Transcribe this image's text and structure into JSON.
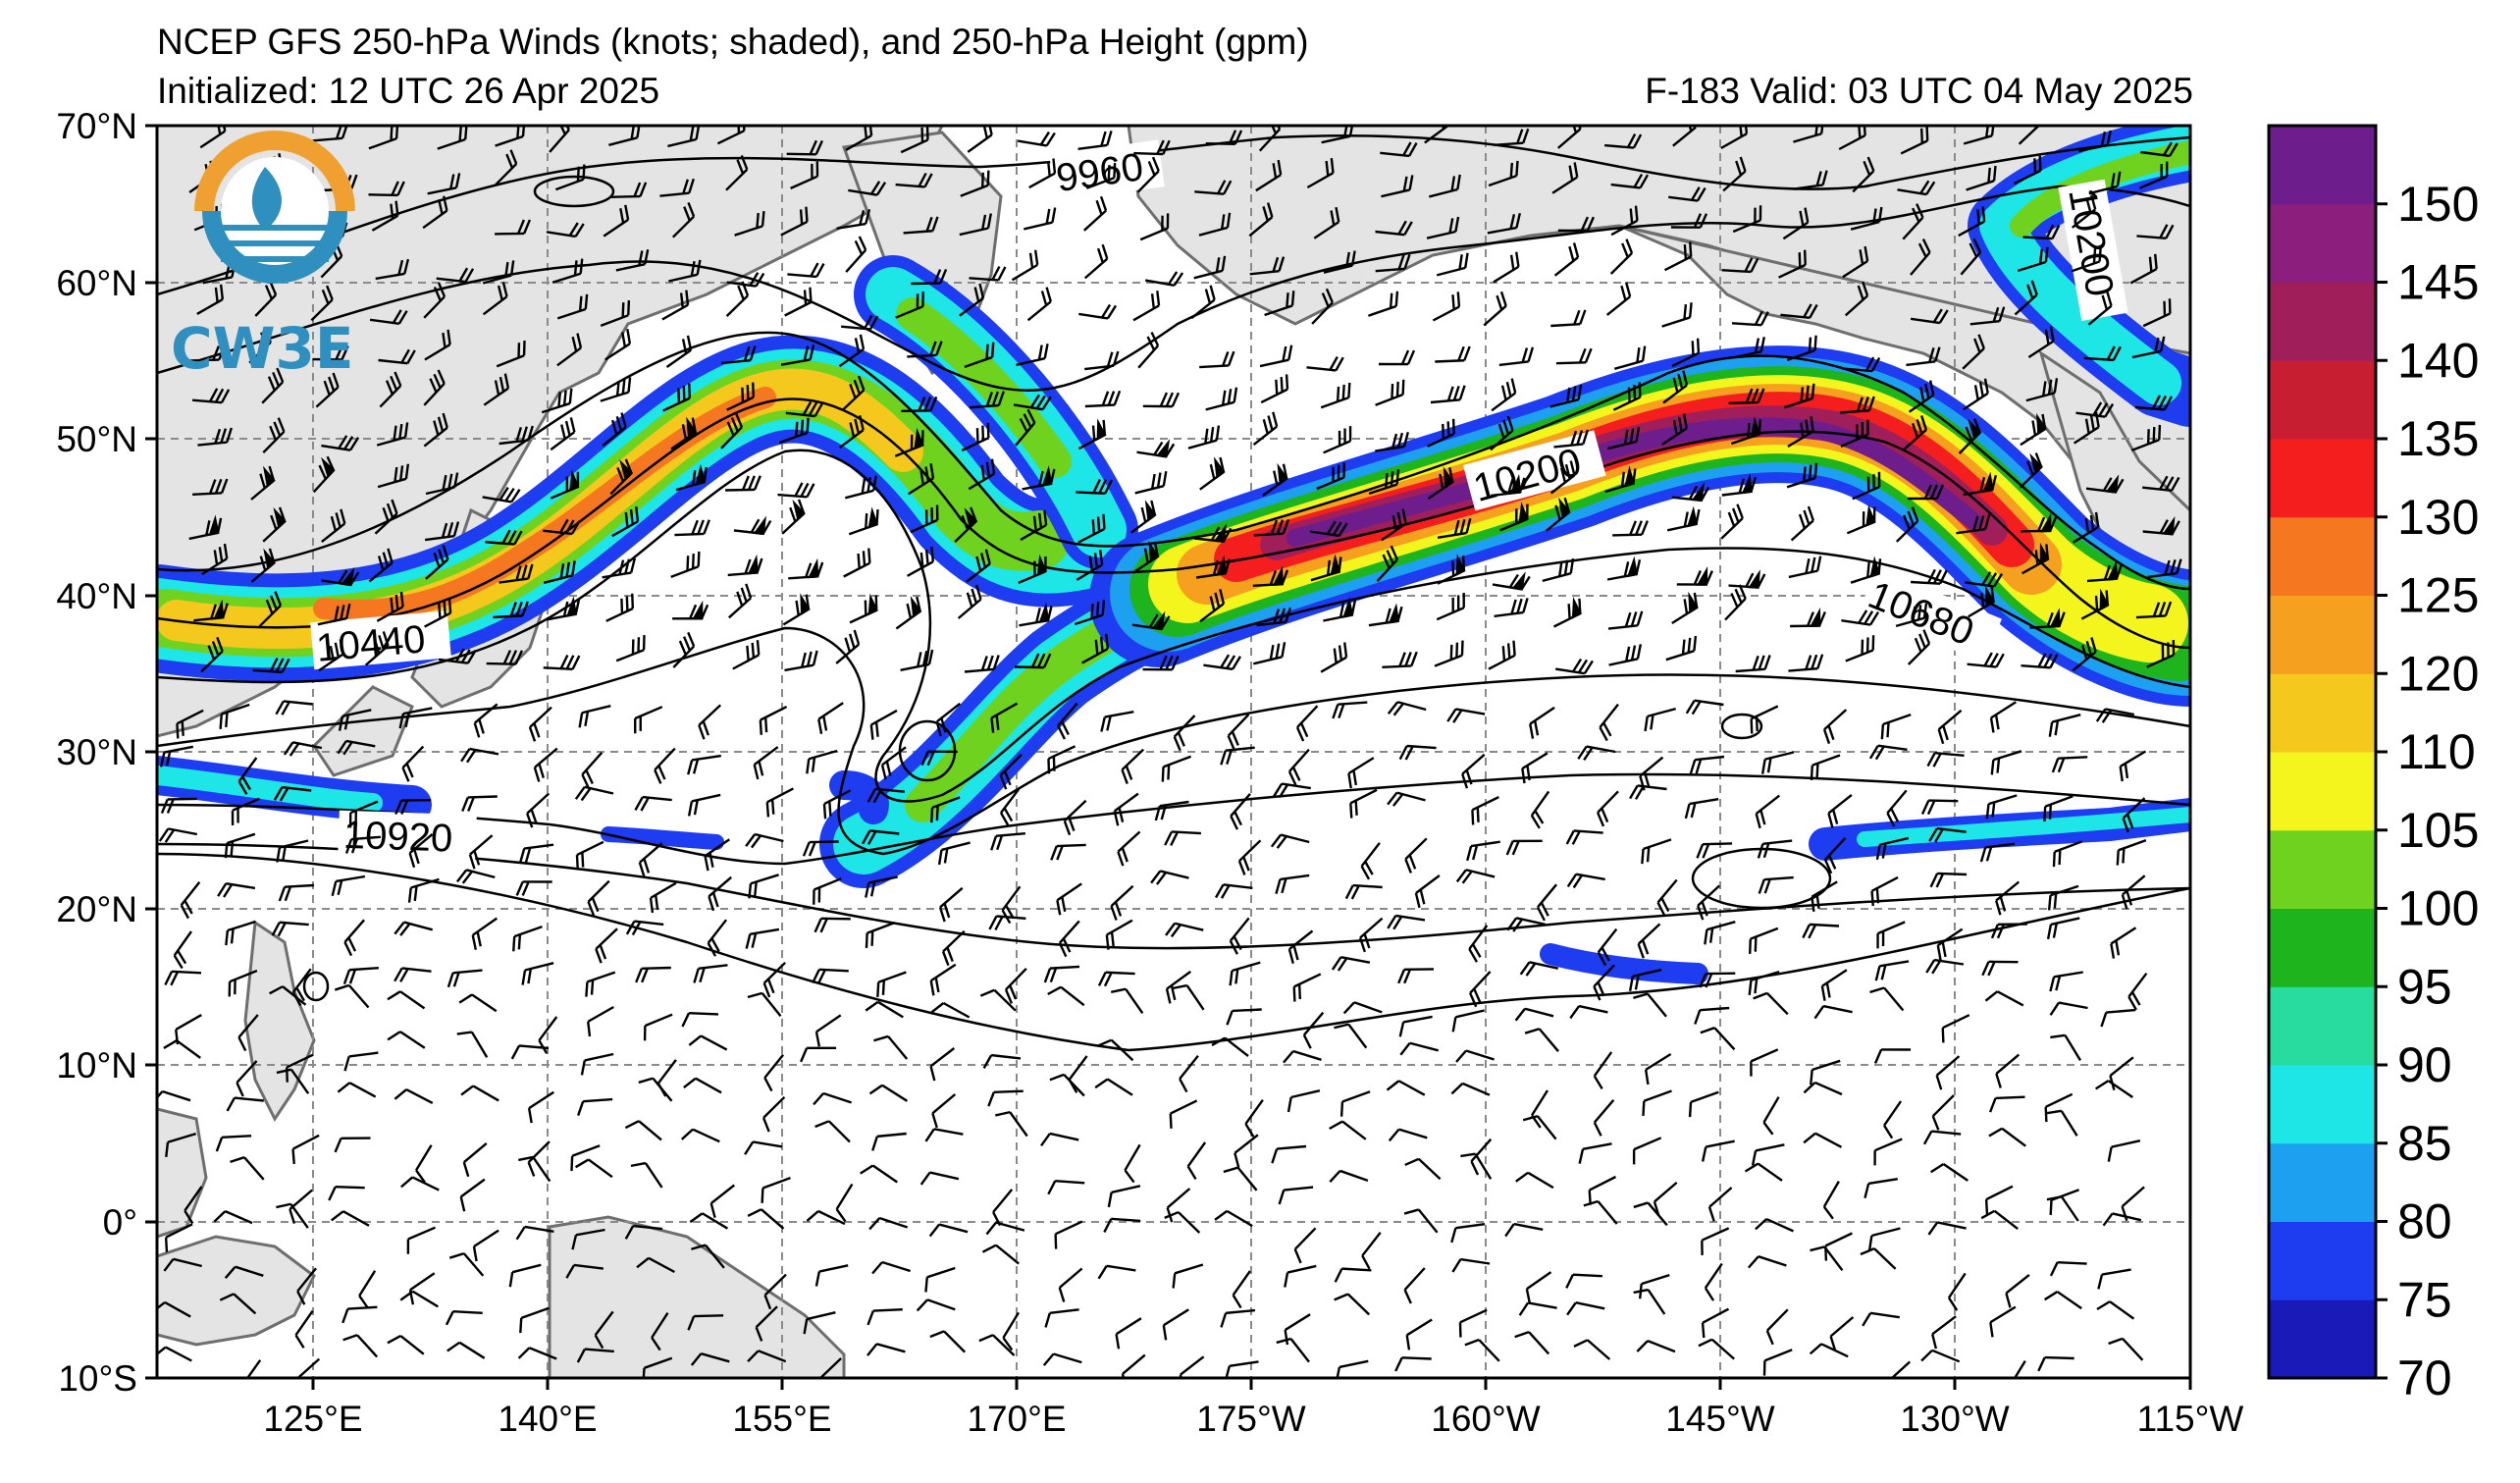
{
  "header": {
    "title": "NCEP GFS 250-hPa Winds (knots; shaded), and 250-hPa Height (gpm)",
    "init": "Initialized: 12 UTC 26 Apr 2025",
    "valid": "F-183  Valid: 03 UTC 04 May 2025"
  },
  "logo": {
    "text": "CW3E",
    "icon": "cw3e-logo-icon"
  },
  "map": {
    "lat_labels": [
      "70°N",
      "60°N",
      "50°N",
      "40°N",
      "30°N",
      "20°N",
      "10°N",
      "0°",
      "10°S"
    ],
    "lon_labels": [
      "125°E",
      "140°E",
      "155°E",
      "170°E",
      "175°W",
      "160°W",
      "145°W",
      "130°W",
      "115°W"
    ],
    "lat_range": [
      -10,
      70
    ],
    "lon_range": [
      115,
      245
    ],
    "land_color": "#e4e4e4",
    "coast_color": "#6e6e6e"
  },
  "contour_labels": [
    "9960",
    "10200",
    "10200",
    "10440",
    "10680",
    "10920"
  ],
  "colorbar": {
    "labels": [
      "70",
      "75",
      "80",
      "85",
      "90",
      "95",
      "100",
      "105",
      "110",
      "120",
      "125",
      "130",
      "135",
      "140",
      "145",
      "150"
    ],
    "colors": [
      "#1a1ab8",
      "#1e3cf0",
      "#1ea0f0",
      "#1ee6e6",
      "#28dca0",
      "#1eb41e",
      "#6ed21e",
      "#f5f51e",
      "#f5c81e",
      "#f5a01e",
      "#f57820",
      "#f51e1e",
      "#c81e32",
      "#a01e5a",
      "#8c1e7d",
      "#6e1e8c"
    ]
  }
}
